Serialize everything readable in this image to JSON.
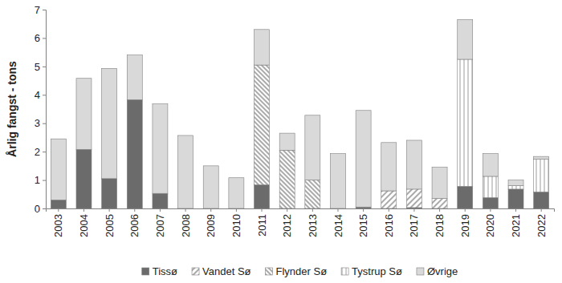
{
  "chart_data": {
    "type": "bar",
    "stacked": true,
    "y_label": "Årlig fangst - tons",
    "categories": [
      "2003",
      "2004",
      "2005",
      "2006",
      "2007",
      "2008",
      "2009",
      "2010",
      "2011",
      "2012",
      "2013",
      "2014",
      "2015",
      "2016",
      "2017",
      "2018",
      "2019",
      "2020",
      "2021",
      "2022"
    ],
    "series": [
      {
        "name": "Tissø",
        "color": "#6b6b6b",
        "values": [
          0.3,
          2.08,
          1.05,
          3.83,
          0.53,
          0,
          0,
          0,
          0.83,
          0,
          0,
          0,
          0.05,
          0,
          0.03,
          0,
          0.78,
          0.38,
          0.68,
          0.58
        ]
      },
      {
        "name": "Vandet Sø",
        "color": "#ffffff",
        "values": [
          0,
          0,
          0,
          0,
          0,
          0,
          0,
          0,
          0,
          0,
          0,
          0,
          0,
          0.62,
          0.65,
          0.35,
          0,
          0,
          0,
          0
        ]
      },
      {
        "name": "Flynder Sø",
        "color": "#ffffff",
        "values": [
          0,
          0,
          0,
          0,
          0,
          0,
          0,
          0,
          4.22,
          2.05,
          1.0,
          0,
          0,
          0,
          0,
          0,
          0,
          0,
          0,
          0
        ]
      },
      {
        "name": "Tystrup Sø",
        "color": "#ffffff",
        "values": [
          0,
          0,
          0,
          0,
          0,
          0,
          0,
          0,
          0,
          0,
          0,
          0,
          0,
          0,
          0,
          0,
          4.47,
          0.75,
          0.12,
          1.15
        ]
      },
      {
        "name": "Øvrige",
        "color": "#d9d9d9",
        "values": [
          2.15,
          2.5,
          3.88,
          1.57,
          3.15,
          2.57,
          1.5,
          1.08,
          1.25,
          0.6,
          2.28,
          1.93,
          3.4,
          1.7,
          1.72,
          1.1,
          1.4,
          0.8,
          0.2,
          0.1
        ]
      }
    ],
    "ylim": [
      0,
      7
    ],
    "yticks": [
      0,
      1,
      2,
      3,
      4,
      5,
      6,
      7
    ],
    "grid": false,
    "legend": "bottom"
  }
}
